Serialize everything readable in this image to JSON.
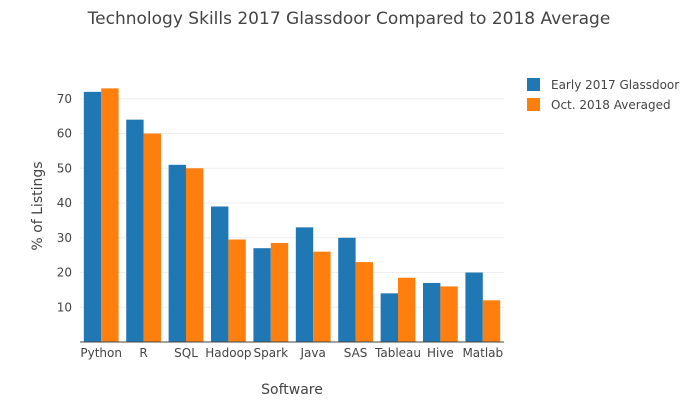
{
  "chart_data": {
    "type": "bar",
    "title": "Technology Skills 2017 Glassdoor Compared to 2018 Average",
    "xlabel": "Software",
    "ylabel": "% of Listings",
    "categories": [
      "Python",
      "R",
      "SQL",
      "Hadoop",
      "Spark",
      "Java",
      "SAS",
      "Tableau",
      "Hive",
      "Matlab"
    ],
    "series": [
      {
        "name": "Early 2017 Glassdoor",
        "color": "#1f77b4",
        "values": [
          72,
          64,
          51,
          39,
          27,
          33,
          30,
          14,
          17,
          20
        ]
      },
      {
        "name": "Oct. 2018 Averaged",
        "color": "#ff7f0e",
        "values": [
          73,
          60,
          50,
          29.5,
          28.5,
          26,
          23,
          18.5,
          16,
          12
        ]
      }
    ],
    "ylim": [
      0,
      78
    ],
    "yticks": [
      10,
      20,
      30,
      40,
      50,
      60,
      70
    ],
    "grid": true,
    "legend_position": "top-right"
  }
}
